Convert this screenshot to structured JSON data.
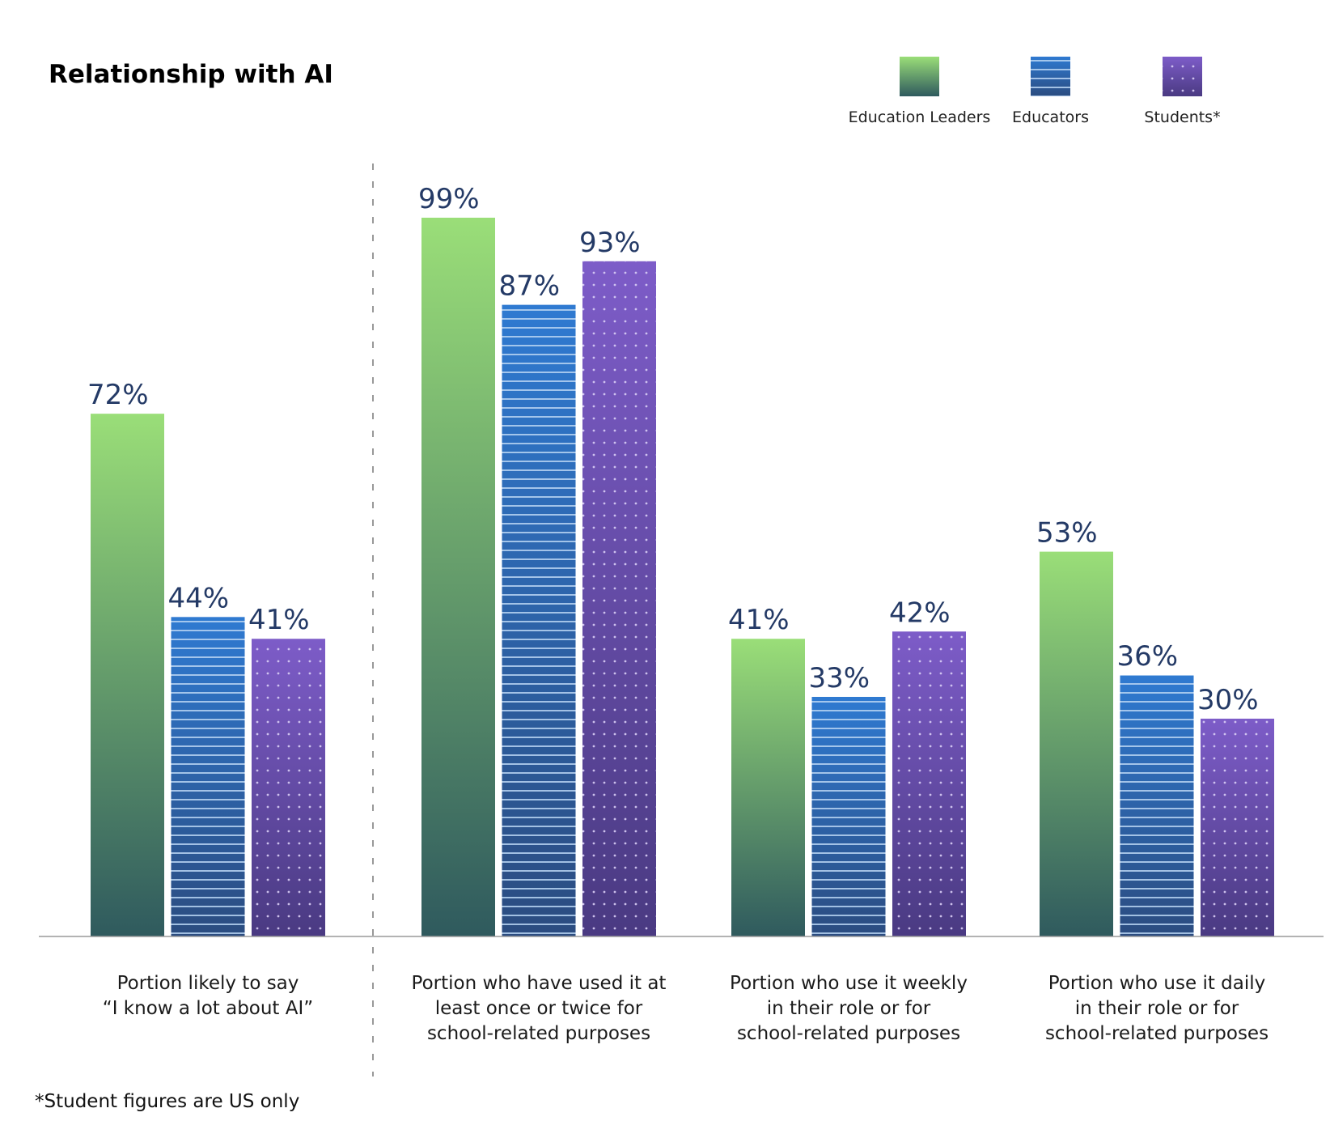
{
  "chart_data": {
    "type": "bar",
    "title": "Relationship with AI",
    "xlabel": "",
    "ylabel": "",
    "ylim": [
      0,
      100
    ],
    "grid": false,
    "legend_position": "top-right",
    "categories": [
      [
        "Portion likely to say",
        "“I know a lot about AI”"
      ],
      [
        "Portion who have used it at",
        "least once or twice for",
        "school-related purposes"
      ],
      [
        "Portion who use it weekly",
        "in their role or for",
        "school-related purposes"
      ],
      [
        "Portion who use it daily",
        "in their role or for",
        "school-related purposes"
      ]
    ],
    "series": [
      {
        "name": "Education Leaders",
        "values": [
          72,
          99,
          41,
          53
        ],
        "pattern": "gradient",
        "color_top": "#9ade78",
        "color_bottom": "#2f5a5e"
      },
      {
        "name": "Educators",
        "values": [
          44,
          87,
          33,
          36
        ],
        "pattern": "horizontal-stripes",
        "color_top": "#2f7ad1",
        "color_bottom": "#2b4c80"
      },
      {
        "name": "Students*",
        "values": [
          41,
          93,
          42,
          30
        ],
        "pattern": "dots",
        "color_top": "#7d5cc8",
        "color_bottom": "#4a3a82"
      }
    ],
    "value_label_format": "{v}%",
    "value_label_color": "#243a66",
    "divider_after_category": 0,
    "footnote": "*Student figures are US only"
  }
}
